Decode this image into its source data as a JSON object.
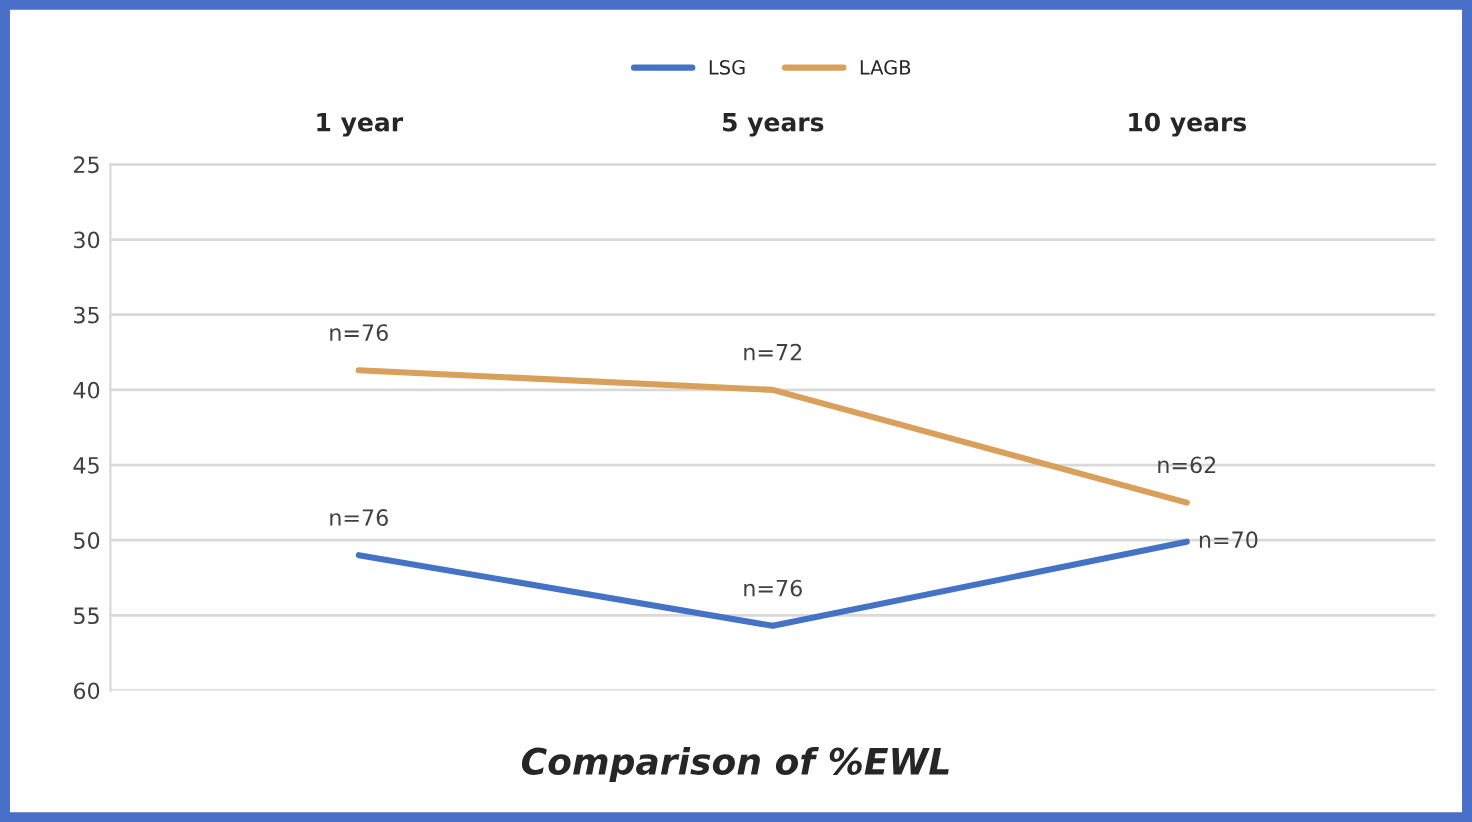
{
  "chart_data": {
    "type": "line",
    "title": "Comparison of %EWL",
    "categories": [
      "1 year",
      "5 years",
      "10 years"
    ],
    "series": [
      {
        "name": "LSG",
        "color": "#4472c4",
        "values": [
          51.0,
          55.7,
          50.1
        ]
      },
      {
        "name": "LAGB",
        "color": "#d9a05b",
        "values": [
          38.7,
          40.0,
          47.5
        ]
      }
    ],
    "annotations": [
      {
        "text": "n=76",
        "x": "1 year",
        "y": 51.0
      },
      {
        "text": "n=76",
        "x": "5 years",
        "y": 55.7
      },
      {
        "text": "n=70",
        "x": "10 years",
        "y": 50.1
      },
      {
        "text": "n=76",
        "x": "1 year",
        "y": 38.7
      },
      {
        "text": "n=72",
        "x": "5 years",
        "y": 40.0
      },
      {
        "text": "n=62",
        "x": "10 years",
        "y": 47.5
      }
    ],
    "ylim": [
      60,
      25
    ],
    "yticks": [
      25,
      30,
      35,
      40,
      45,
      50,
      55,
      60
    ],
    "grid": "y",
    "legend": "top",
    "marker": "none",
    "line_style": "solid"
  }
}
